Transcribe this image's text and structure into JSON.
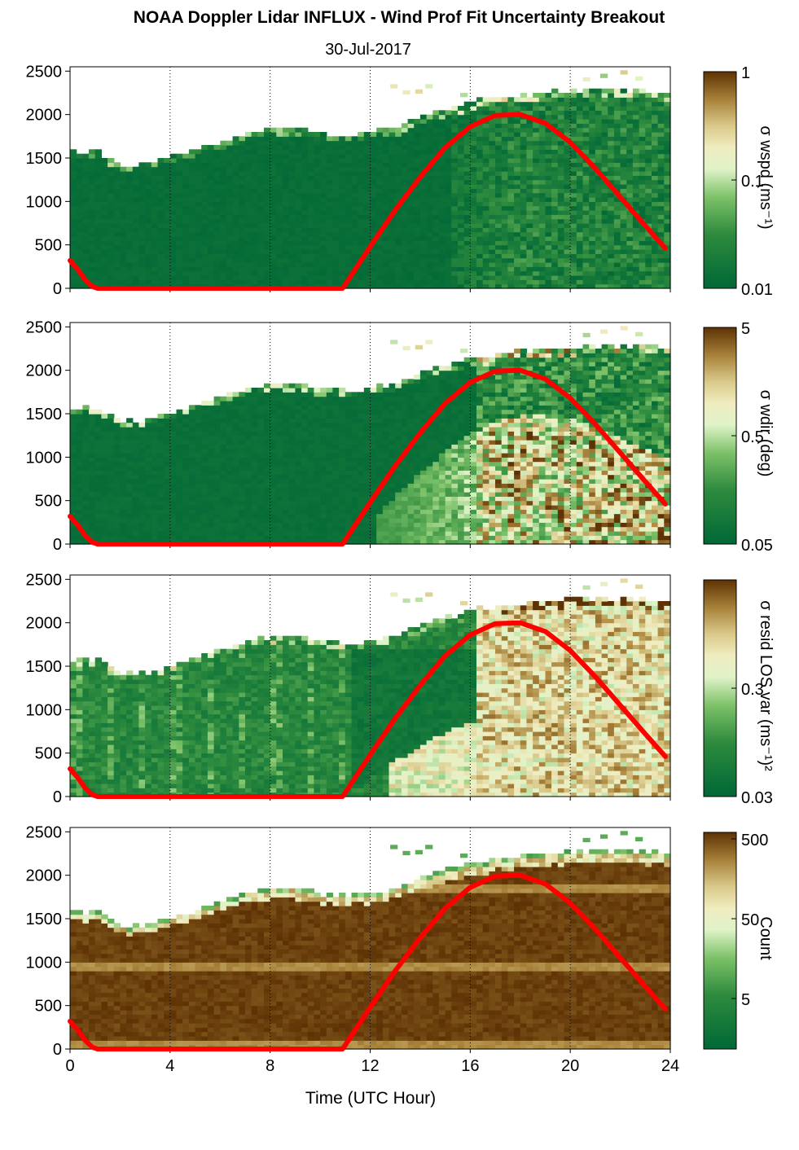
{
  "title": "NOAA Doppler Lidar INFLUX - Wind Prof Fit Uncertainty Breakout",
  "subtitle": "30-Jul-2017",
  "xlabel": "Time (UTC Hour)",
  "colors": {
    "sun_curve": "#ff0000",
    "dark_green": "#006837",
    "mid_green": "#4daf4a",
    "pale": "#f5f5dc",
    "khaki": "#c2b068",
    "dark_brown": "#5e3204"
  },
  "chart_data": [
    {
      "type": "heatmap",
      "panel": "wspd",
      "xlim": [
        0,
        24
      ],
      "ylim": [
        0,
        2550
      ],
      "xticks": [
        0,
        4,
        8,
        12,
        16,
        20,
        24
      ],
      "yticks": [
        0,
        500,
        1000,
        1500,
        2000,
        2500
      ],
      "colorbar_label": "σ wspd (ms⁻¹)",
      "colorbar_ticks": [
        "1",
        "0.1",
        "0.01"
      ],
      "grid": "vertical dotted at 4, 8, 12, 16, 20, 24",
      "top_height_m": [
        [
          0,
          1550
        ],
        [
          1,
          1550
        ],
        [
          2,
          1380
        ],
        [
          3,
          1410
        ],
        [
          4,
          1500
        ],
        [
          5,
          1580
        ],
        [
          6,
          1680
        ],
        [
          7,
          1770
        ],
        [
          8,
          1830
        ],
        [
          9,
          1820
        ],
        [
          10,
          1760
        ],
        [
          11,
          1740
        ],
        [
          12,
          1780
        ],
        [
          13,
          1830
        ],
        [
          14,
          1960
        ],
        [
          15,
          2050
        ],
        [
          16,
          2120
        ],
        [
          17,
          2170
        ],
        [
          18,
          2200
        ],
        [
          19,
          2230
        ],
        [
          20,
          2250
        ],
        [
          21,
          2260
        ],
        [
          22,
          2260
        ],
        [
          23,
          2240
        ],
        [
          23.8,
          2240
        ]
      ],
      "sun_curve": [
        [
          0,
          320
        ],
        [
          0.3,
          220
        ],
        [
          0.6,
          100
        ],
        [
          0.9,
          20
        ],
        [
          1.1,
          0
        ],
        [
          10.9,
          0
        ],
        [
          12,
          480
        ],
        [
          13,
          900
        ],
        [
          14,
          1280
        ],
        [
          15,
          1620
        ],
        [
          16,
          1860
        ],
        [
          17,
          1990
        ],
        [
          18,
          2000
        ],
        [
          19,
          1900
        ],
        [
          20,
          1680
        ],
        [
          21,
          1380
        ],
        [
          22,
          1050
        ],
        [
          23,
          720
        ],
        [
          23.8,
          460
        ]
      ]
    },
    {
      "type": "heatmap",
      "panel": "wdir",
      "xlim": [
        0,
        24
      ],
      "ylim": [
        0,
        2550
      ],
      "xticks": [
        0,
        4,
        8,
        12,
        16,
        20,
        24
      ],
      "yticks": [
        0,
        500,
        1000,
        1500,
        2000,
        2500
      ],
      "colorbar_label": "σ wdir (deg)",
      "colorbar_ticks": [
        "5",
        "0.5",
        "0.05"
      ],
      "grid": "vertical dotted at 4, 8, 12, 16, 20, 24",
      "sun_curve": [
        [
          0,
          320
        ],
        [
          0.3,
          220
        ],
        [
          0.6,
          100
        ],
        [
          0.9,
          20
        ],
        [
          1.1,
          0
        ],
        [
          10.9,
          0
        ],
        [
          12,
          480
        ],
        [
          13,
          900
        ],
        [
          14,
          1280
        ],
        [
          15,
          1620
        ],
        [
          16,
          1860
        ],
        [
          17,
          1990
        ],
        [
          18,
          2000
        ],
        [
          19,
          1900
        ],
        [
          20,
          1680
        ],
        [
          21,
          1380
        ],
        [
          22,
          1050
        ],
        [
          23,
          720
        ],
        [
          23.8,
          460
        ]
      ]
    },
    {
      "type": "heatmap",
      "panel": "resid",
      "xlim": [
        0,
        24
      ],
      "ylim": [
        0,
        2550
      ],
      "xticks": [
        0,
        4,
        8,
        12,
        16,
        20,
        24
      ],
      "yticks": [
        0,
        500,
        1000,
        1500,
        2000,
        2500
      ],
      "colorbar_label": "σ resid LOS var (ms⁻¹)²",
      "colorbar_ticks": [
        "0.3",
        "0.03"
      ],
      "grid": "vertical dotted at 4, 8, 12, 16, 20, 24",
      "sun_curve": [
        [
          0,
          320
        ],
        [
          0.3,
          220
        ],
        [
          0.6,
          100
        ],
        [
          0.9,
          20
        ],
        [
          1.1,
          0
        ],
        [
          10.9,
          0
        ],
        [
          12,
          480
        ],
        [
          13,
          900
        ],
        [
          14,
          1280
        ],
        [
          15,
          1620
        ],
        [
          16,
          1860
        ],
        [
          17,
          1990
        ],
        [
          18,
          2000
        ],
        [
          19,
          1900
        ],
        [
          20,
          1680
        ],
        [
          21,
          1380
        ],
        [
          22,
          1050
        ],
        [
          23,
          720
        ],
        [
          23.8,
          460
        ]
      ]
    },
    {
      "type": "heatmap",
      "panel": "count",
      "xlim": [
        0,
        24
      ],
      "ylim": [
        0,
        2550
      ],
      "xticks": [
        0,
        4,
        8,
        12,
        16,
        20,
        24
      ],
      "yticks": [
        0,
        500,
        1000,
        1500,
        2000,
        2500
      ],
      "colorbar_label": "Count",
      "colorbar_ticks": [
        "500",
        "50",
        "5"
      ],
      "grid": "vertical dotted at 4, 8, 12, 16, 20, 24",
      "sun_curve": [
        [
          0,
          320
        ],
        [
          0.3,
          220
        ],
        [
          0.6,
          100
        ],
        [
          0.9,
          20
        ],
        [
          1.1,
          0
        ],
        [
          10.9,
          0
        ],
        [
          12,
          480
        ],
        [
          13,
          900
        ],
        [
          14,
          1280
        ],
        [
          15,
          1620
        ],
        [
          16,
          1860
        ],
        [
          17,
          1990
        ],
        [
          18,
          2000
        ],
        [
          19,
          1900
        ],
        [
          20,
          1680
        ],
        [
          21,
          1380
        ],
        [
          22,
          1050
        ],
        [
          23,
          720
        ],
        [
          23.8,
          460
        ]
      ]
    }
  ]
}
